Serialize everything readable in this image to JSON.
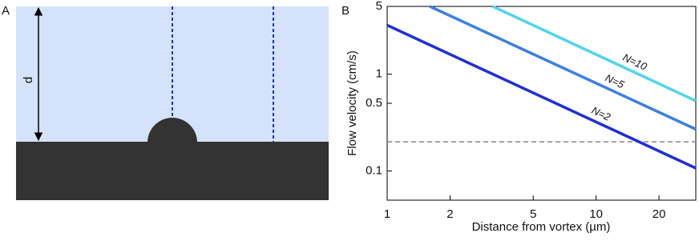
{
  "panel_a": {
    "label": "A",
    "dimension_label": "d"
  },
  "chart_data": {
    "type": "line",
    "panel_label": "B",
    "x_label": "Distance from vortex (µm)",
    "y_label": "Flow velocity (cm/s)",
    "log_x": true,
    "log_y": true,
    "xlim": [
      1,
      30
    ],
    "ylim": [
      0.05,
      5
    ],
    "xticks": [
      1,
      2,
      5,
      10,
      20
    ],
    "yticks": [
      0.1,
      0.5,
      1,
      5
    ],
    "series": [
      {
        "name": "N=2",
        "color": "#1f2fd6",
        "x": [
          1,
          30
        ],
        "values": [
          3.2,
          0.107
        ]
      },
      {
        "name": "N=5",
        "color": "#3b80e2",
        "x": [
          1.6,
          30
        ],
        "values": [
          5,
          0.27
        ]
      },
      {
        "name": "N=10",
        "color": "#52d3f2",
        "x": [
          3.2,
          30
        ],
        "values": [
          5,
          0.53
        ]
      }
    ],
    "hline": {
      "value": 0.2,
      "color": "#888888"
    }
  }
}
